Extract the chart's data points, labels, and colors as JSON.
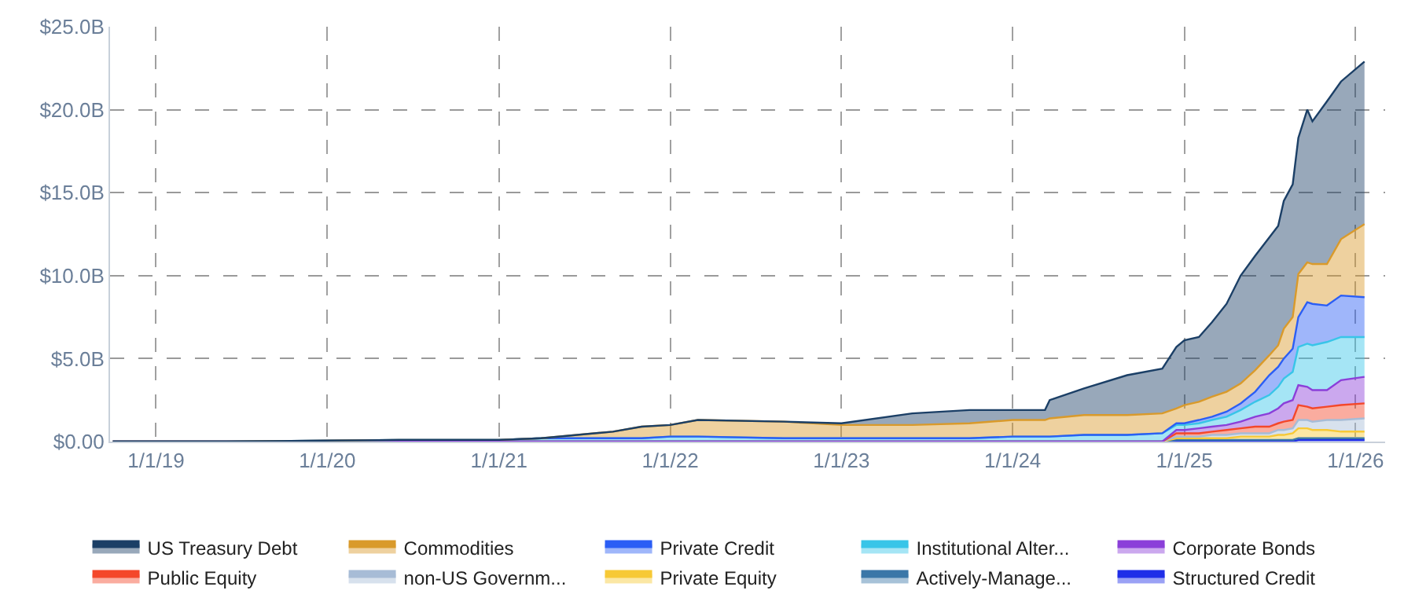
{
  "chart_data": {
    "type": "area",
    "stacked": true,
    "x": [
      "2018-10-01",
      "2019-06-01",
      "2020-06-01",
      "2021-01-01",
      "2021-04-01",
      "2021-09-01",
      "2021-11-01",
      "2022-01-01",
      "2022-03-01",
      "2022-09-01",
      "2023-01-01",
      "2023-06-01",
      "2023-10-01",
      "2024-01-01",
      "2024-03-10",
      "2024-03-20",
      "2024-06-01",
      "2024-09-01",
      "2024-11-15",
      "2024-12-15",
      "2025-01-01",
      "2025-02-01",
      "2025-03-01",
      "2025-04-01",
      "2025-05-01",
      "2025-06-01",
      "2025-07-01",
      "2025-07-20",
      "2025-08-01",
      "2025-08-20",
      "2025-09-01",
      "2025-09-20",
      "2025-10-01",
      "2025-11-01",
      "2025-12-01",
      "2026-01-20"
    ],
    "series": [
      {
        "name": "Structured Credit",
        "color": "#1f2ee8",
        "values": [
          0,
          0,
          0,
          0,
          0,
          0,
          0,
          0,
          0,
          0,
          0,
          0,
          0,
          0,
          0,
          0,
          0,
          0,
          0,
          0,
          0,
          0,
          0,
          0,
          0,
          0,
          0,
          0,
          0,
          0,
          0.1,
          0.1,
          0.1,
          0.1,
          0.1,
          0.1
        ]
      },
      {
        "name": "Actively-Manage...",
        "color": "#3b77a8",
        "values": [
          0,
          0,
          0,
          0,
          0,
          0,
          0,
          0,
          0,
          0,
          0,
          0,
          0,
          0,
          0,
          0,
          0,
          0,
          0,
          0.1,
          0.1,
          0.1,
          0.1,
          0.1,
          0.1,
          0.1,
          0.1,
          0.1,
          0.1,
          0.1,
          0.1,
          0.1,
          0.1,
          0.1,
          0.1,
          0.1
        ]
      },
      {
        "name": "Private Equity",
        "color": "#f7c936",
        "values": [
          0,
          0,
          0,
          0,
          0,
          0,
          0,
          0,
          0,
          0,
          0,
          0,
          0,
          0,
          0,
          0,
          0,
          0,
          0,
          0.1,
          0.1,
          0.1,
          0.1,
          0.1,
          0.2,
          0.2,
          0.2,
          0.3,
          0.3,
          0.4,
          0.6,
          0.6,
          0.5,
          0.5,
          0.4,
          0.4
        ]
      },
      {
        "name": "non-US Governm...",
        "color": "#a7bcd6",
        "values": [
          0,
          0,
          0,
          0,
          0,
          0,
          0,
          0,
          0,
          0,
          0,
          0,
          0,
          0,
          0,
          0,
          0,
          0,
          0,
          0.1,
          0.1,
          0.1,
          0.2,
          0.2,
          0.2,
          0.2,
          0.2,
          0.3,
          0.3,
          0.3,
          0.5,
          0.5,
          0.5,
          0.6,
          0.7,
          0.8
        ]
      },
      {
        "name": "Public Equity",
        "color": "#f4472a",
        "values": [
          0,
          0,
          0,
          0,
          0,
          0,
          0,
          0,
          0,
          0,
          0,
          0,
          0,
          0,
          0,
          0,
          0,
          0,
          0,
          0.2,
          0.2,
          0.2,
          0.2,
          0.3,
          0.3,
          0.4,
          0.4,
          0.4,
          0.5,
          0.5,
          0.9,
          0.8,
          0.8,
          0.8,
          0.9,
          0.9
        ]
      },
      {
        "name": "Corporate Bonds",
        "color": "#8b3fd9",
        "values": [
          0,
          0,
          0,
          0,
          0,
          0,
          0,
          0,
          0,
          0,
          0,
          0,
          0,
          0,
          0,
          0,
          0,
          0,
          0,
          0.2,
          0.2,
          0.3,
          0.3,
          0.3,
          0.4,
          0.6,
          0.8,
          0.9,
          1.1,
          1.2,
          1.2,
          1.2,
          1.1,
          1.0,
          1.5,
          1.6
        ]
      },
      {
        "name": "Institutional Alter...",
        "color": "#38c5e8",
        "values": [
          0,
          0,
          0.1,
          0.1,
          0.2,
          0.2,
          0.2,
          0.3,
          0.3,
          0.2,
          0.2,
          0.2,
          0.2,
          0.3,
          0.3,
          0.3,
          0.4,
          0.4,
          0.5,
          0.3,
          0.3,
          0.3,
          0.4,
          0.5,
          0.7,
          0.9,
          1.1,
          1.3,
          1.5,
          1.7,
          2.3,
          2.6,
          2.7,
          2.9,
          2.6,
          2.4
        ]
      },
      {
        "name": "Private Credit",
        "color": "#2b5ef5",
        "values": [
          0,
          0,
          0,
          0,
          0,
          0,
          0,
          0,
          0,
          0,
          0,
          0,
          0,
          0,
          0,
          0,
          0,
          0,
          0,
          0.1,
          0.1,
          0.2,
          0.2,
          0.3,
          0.4,
          0.6,
          1.2,
          1.2,
          1.2,
          1.4,
          1.8,
          2.5,
          2.5,
          2.2,
          2.5,
          2.4
        ]
      },
      {
        "name": "Commodities",
        "color": "#d99a2b",
        "values": [
          0,
          0,
          0,
          0,
          0,
          0.4,
          0.7,
          0.7,
          1.0,
          1.0,
          0.8,
          0.8,
          0.9,
          1.0,
          1.0,
          1.1,
          1.2,
          1.2,
          1.2,
          0.9,
          1.1,
          1.1,
          1.2,
          1.2,
          1.2,
          1.3,
          1.2,
          1.3,
          1.8,
          1.9,
          2.6,
          2.4,
          2.4,
          2.5,
          3.4,
          4.4
        ]
      },
      {
        "name": "US Treasury Debt",
        "color": "#1b3f66",
        "values": [
          0,
          0,
          0,
          0,
          0,
          0,
          0,
          0,
          0,
          0,
          0.1,
          0.7,
          0.8,
          0.6,
          0.6,
          1.1,
          1.6,
          2.4,
          2.7,
          3.7,
          3.9,
          3.9,
          4.5,
          5.3,
          6.5,
          6.9,
          7.1,
          7.2,
          7.7,
          8.0,
          8.2,
          9.2,
          8.6,
          9.8,
          9.5,
          9.8
        ]
      }
    ],
    "xlim": [
      "2018-09-25",
      "2026-03-05"
    ],
    "xticks": [
      {
        "value": "2019-01-01",
        "label": "1/1/19"
      },
      {
        "value": "2020-01-01",
        "label": "1/1/20"
      },
      {
        "value": "2021-01-01",
        "label": "1/1/21"
      },
      {
        "value": "2022-01-01",
        "label": "1/1/22"
      },
      {
        "value": "2023-01-01",
        "label": "1/1/23"
      },
      {
        "value": "2024-01-01",
        "label": "1/1/24"
      },
      {
        "value": "2025-01-01",
        "label": "1/1/25"
      },
      {
        "value": "2026-01-01",
        "label": "1/1/26"
      }
    ],
    "ylim": [
      0,
      25
    ],
    "yticks": [
      {
        "value": 0,
        "label": "$0.00"
      },
      {
        "value": 5,
        "label": "$5.0B"
      },
      {
        "value": 10,
        "label": "$10.0B"
      },
      {
        "value": 15,
        "label": "$15.0B"
      },
      {
        "value": 20,
        "label": "$20.0B"
      },
      {
        "value": 25,
        "label": "$25.0B"
      }
    ],
    "grid": true,
    "legend": "bottom"
  }
}
